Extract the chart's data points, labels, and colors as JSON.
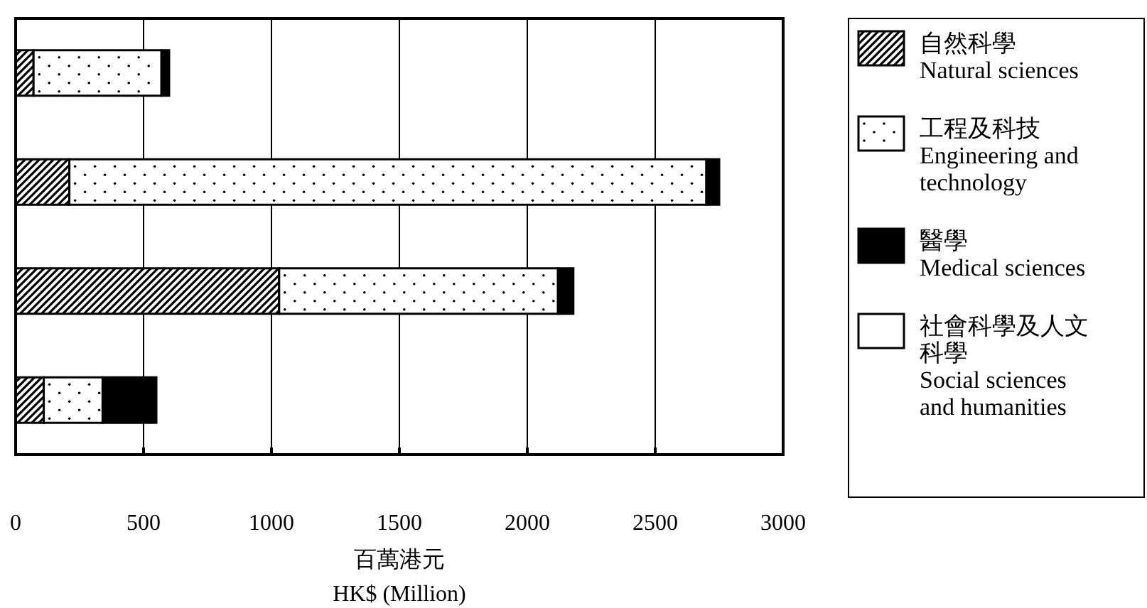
{
  "chart_data": {
    "type": "bar",
    "orientation": "horizontal",
    "stacked": true,
    "categories": [
      null,
      null,
      null,
      null
    ],
    "series": [
      {
        "name": "自然科學\nNatural sciences",
        "color": "#000000",
        "values": [
          70,
          210,
          1030,
          110
        ]
      },
      {
        "name": "工程及科技\nEngineering and\ntechnology",
        "color": "#ffffff",
        "values": [
          500,
          2490,
          1090,
          230
        ]
      },
      {
        "name": "醫學\nMedical sciences",
        "color": "#000000",
        "values": [
          30,
          50,
          60,
          210
        ]
      },
      {
        "name": "社會科學及人文科學\nSocial sciences\nand humanities",
        "color": "#ffffff",
        "values": [
          0,
          0,
          0,
          0
        ]
      }
    ],
    "xlim": [
      0,
      3000
    ],
    "xticks": [
      0,
      500,
      1000,
      1500,
      2000,
      2500,
      3000
    ],
    "xlabel": "百萬港元\nHK$ (Million)",
    "grid": "x",
    "legend": "right"
  }
}
